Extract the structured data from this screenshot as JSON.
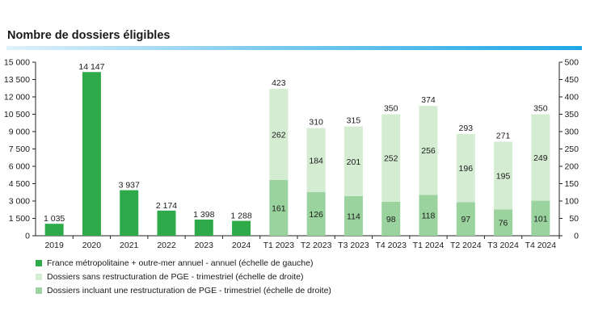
{
  "title": "Nombre de dossiers éligibles",
  "chart_data": {
    "type": "bar",
    "categories": [
      "2019",
      "2020",
      "2021",
      "2022",
      "2023",
      "2024",
      "T1 2023",
      "T2 2023",
      "T3 2023",
      "T4 2023",
      "T1 2024",
      "T2 2024",
      "T3 2024",
      "T4 2024"
    ],
    "left_axis": {
      "ylim": [
        0,
        15000
      ],
      "ticks": [
        "0",
        "1 500",
        "3 000",
        "4 500",
        "6 000",
        "7 500",
        "9 000",
        "10 500",
        "12 000",
        "13 500",
        "15 000"
      ]
    },
    "right_axis": {
      "ylim": [
        0,
        500
      ],
      "ticks": [
        "0",
        "50",
        "100",
        "150",
        "200",
        "250",
        "300",
        "350",
        "400",
        "450",
        "500"
      ]
    },
    "series": [
      {
        "name": "France métropolitaine + outre-mer annuel - annuel (échelle de gauche)",
        "axis": "left",
        "color": "#2eaa4a",
        "values": [
          1035,
          14147,
          3937,
          2174,
          1398,
          1288,
          null,
          null,
          null,
          null,
          null,
          null,
          null,
          null
        ],
        "labels": [
          "1 035",
          "14 147",
          "3 937",
          "2 174",
          "1 398",
          "1 288"
        ]
      },
      {
        "name": "Dossiers incluant une restructuration de PGE - trimestriel (échelle de droite)",
        "axis": "right",
        "color": "#9bd39f",
        "values": [
          null,
          null,
          null,
          null,
          null,
          null,
          161,
          126,
          114,
          98,
          118,
          97,
          76,
          101
        ]
      },
      {
        "name": "Dossiers sans restructuration de PGE - trimestriel (échelle de droite)",
        "axis": "right",
        "color": "#d4edd2",
        "values": [
          null,
          null,
          null,
          null,
          null,
          null,
          262,
          184,
          201,
          252,
          256,
          196,
          195,
          249
        ]
      }
    ],
    "totals": [
      null,
      null,
      null,
      null,
      null,
      null,
      423,
      310,
      315,
      350,
      374,
      293,
      271,
      350
    ],
    "legend_order": [
      0,
      2,
      1
    ],
    "legend_position": "bottom-left",
    "grid": false
  }
}
